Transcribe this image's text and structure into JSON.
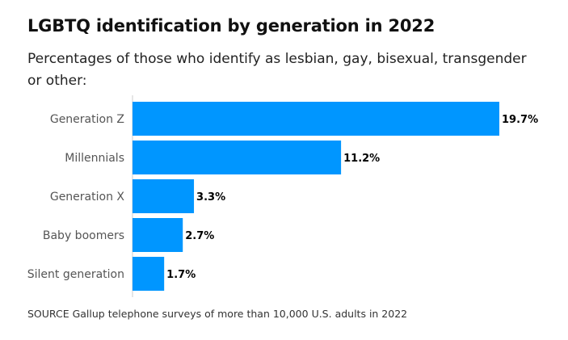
{
  "title": "LGBTQ identification by generation in 2022",
  "subtitle": "Percentages of those who identify as lesbian, gay, bisexual, transgender or other:",
  "source": "SOURCE Gallup telephone surveys of more than 10,000 U.S. adults in 2022",
  "colors": {
    "bar": "#0096ff",
    "category_label": "#555555",
    "value_label": "#000000",
    "axis_line": "#cccccc"
  },
  "chart_data": {
    "type": "bar",
    "orientation": "horizontal",
    "categories": [
      "Generation Z",
      "Millennials",
      "Generation X",
      "Baby boomers",
      "Silent generation"
    ],
    "values": [
      19.7,
      11.2,
      3.3,
      2.7,
      1.7
    ],
    "value_labels": [
      "19.7%",
      "11.2%",
      "3.3%",
      "2.7%",
      "1.7%"
    ],
    "unit": "%",
    "xlim": [
      0,
      19.7
    ],
    "grid": false,
    "legend": "none"
  }
}
